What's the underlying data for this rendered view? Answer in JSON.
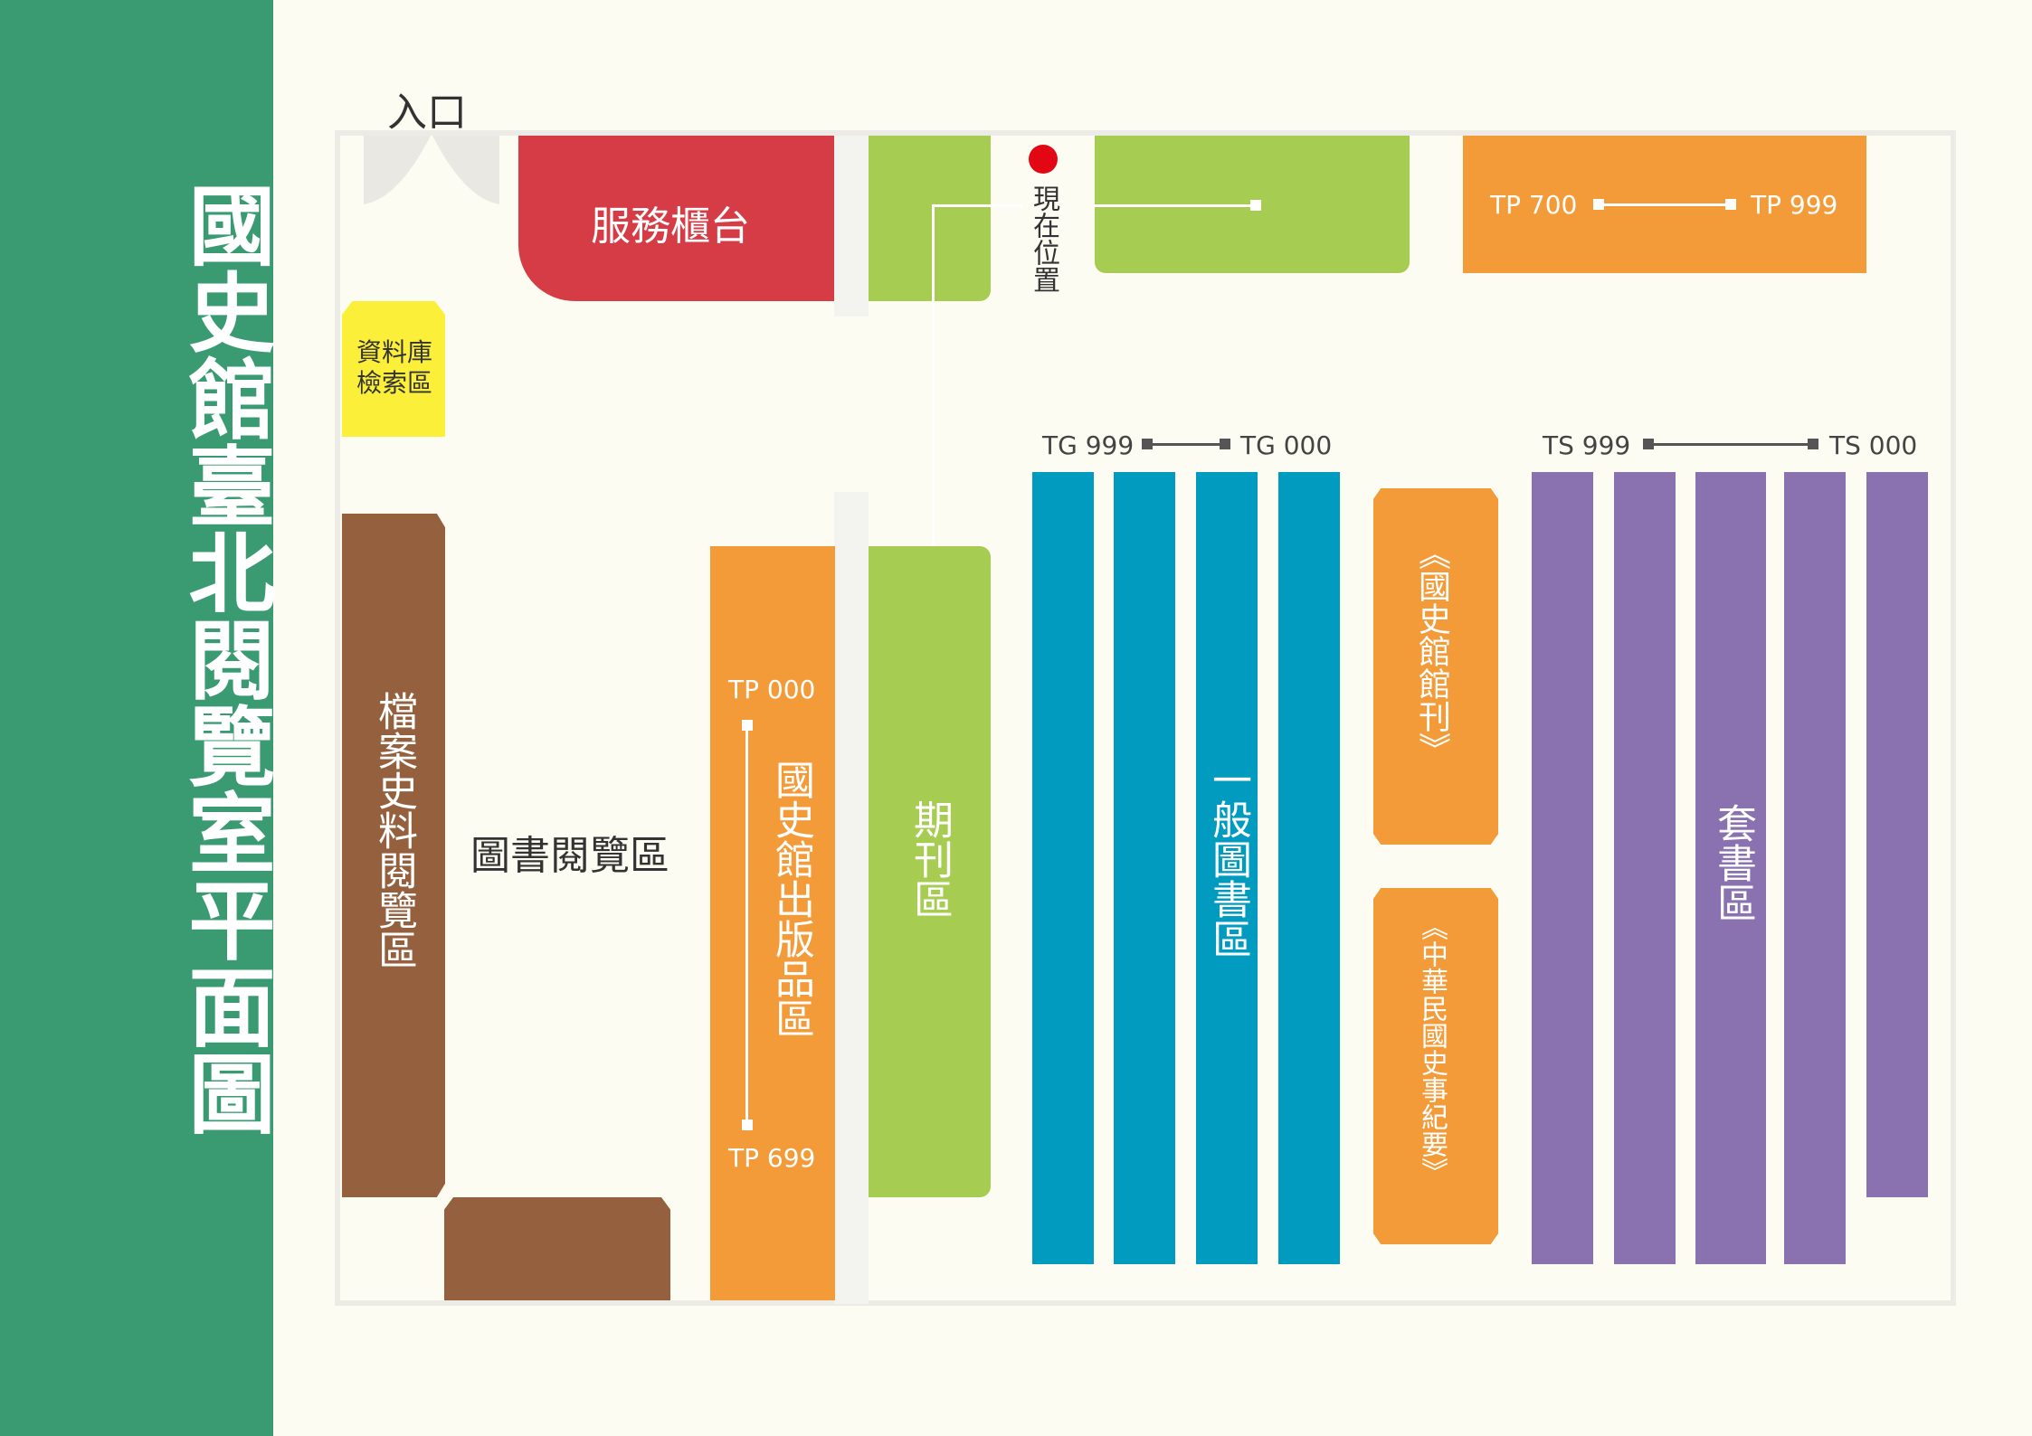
{
  "title": "國史館臺北閱覽室平面圖",
  "entrance": "入口",
  "service_desk": "服務櫃台",
  "current_location": "現在位置",
  "database_area": "資料庫檢索區",
  "archives_area": "檔案史料閱覽區",
  "book_reading_area": "圖書閱覽區",
  "publications_area": "國史館出版品區",
  "periodicals_area": "期刊區",
  "general_books_area": "一般圖書區",
  "sets_area": "套書區",
  "journal_shelf": "《國史館館刊》",
  "chronicle_shelf": "《中華民國史事紀要》",
  "ranges": {
    "tp_top_start": "TP 700",
    "tp_top_end": "TP 999",
    "tp_left_start": "TP 000",
    "tp_left_end": "TP 699",
    "tg_start": "TG 999",
    "tg_end": "TG 000",
    "ts_start": "TS 999",
    "ts_end": "TS 000"
  },
  "colors": {
    "sidebar": "#3a9b72",
    "service_desk": "#d63c46",
    "periodicals": "#a6cc52",
    "publications": "#f29b38",
    "general_books": "#009bbf",
    "sets": "#8a72b0",
    "archives": "#94603d",
    "database": "#fbef3a",
    "current_location": "#e30613"
  }
}
